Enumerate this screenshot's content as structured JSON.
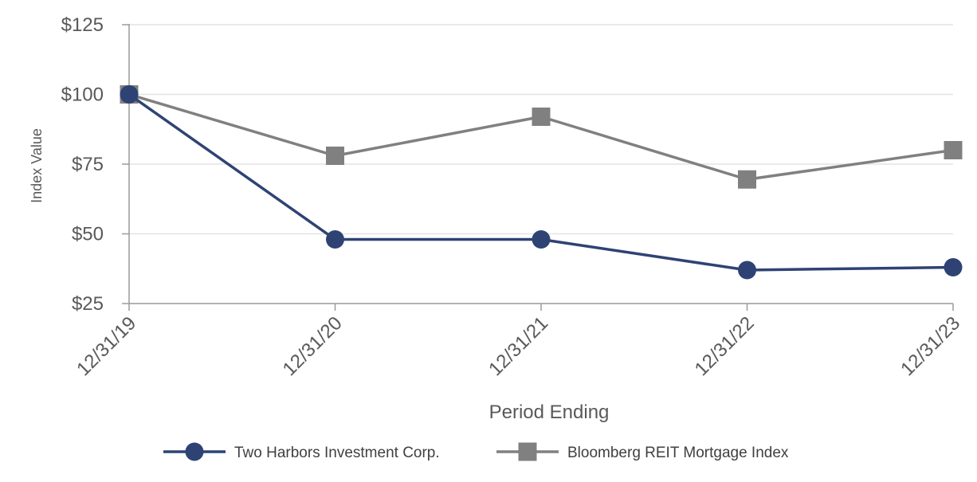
{
  "chart_data": {
    "type": "line",
    "categories": [
      "12/31/19",
      "12/31/20",
      "12/31/21",
      "12/31/22",
      "12/31/23"
    ],
    "series": [
      {
        "name": "Two Harbors Investment Corp.",
        "values": [
          100,
          48,
          48,
          37,
          38
        ],
        "color": "#2e4374",
        "marker": "circle"
      },
      {
        "name": "Bloomberg REIT Mortgage Index",
        "values": [
          100,
          78,
          92,
          69.5,
          80
        ],
        "color": "#808080",
        "marker": "square"
      }
    ],
    "title": "",
    "xlabel": "Period Ending",
    "ylabel": "Index Value",
    "ylim": [
      25,
      125
    ],
    "yticks": [
      25,
      50,
      75,
      100,
      125
    ],
    "ytick_labels": [
      "$25",
      "$50",
      "$75",
      "$100",
      "$125"
    ],
    "grid": true,
    "legend_position": "bottom"
  }
}
